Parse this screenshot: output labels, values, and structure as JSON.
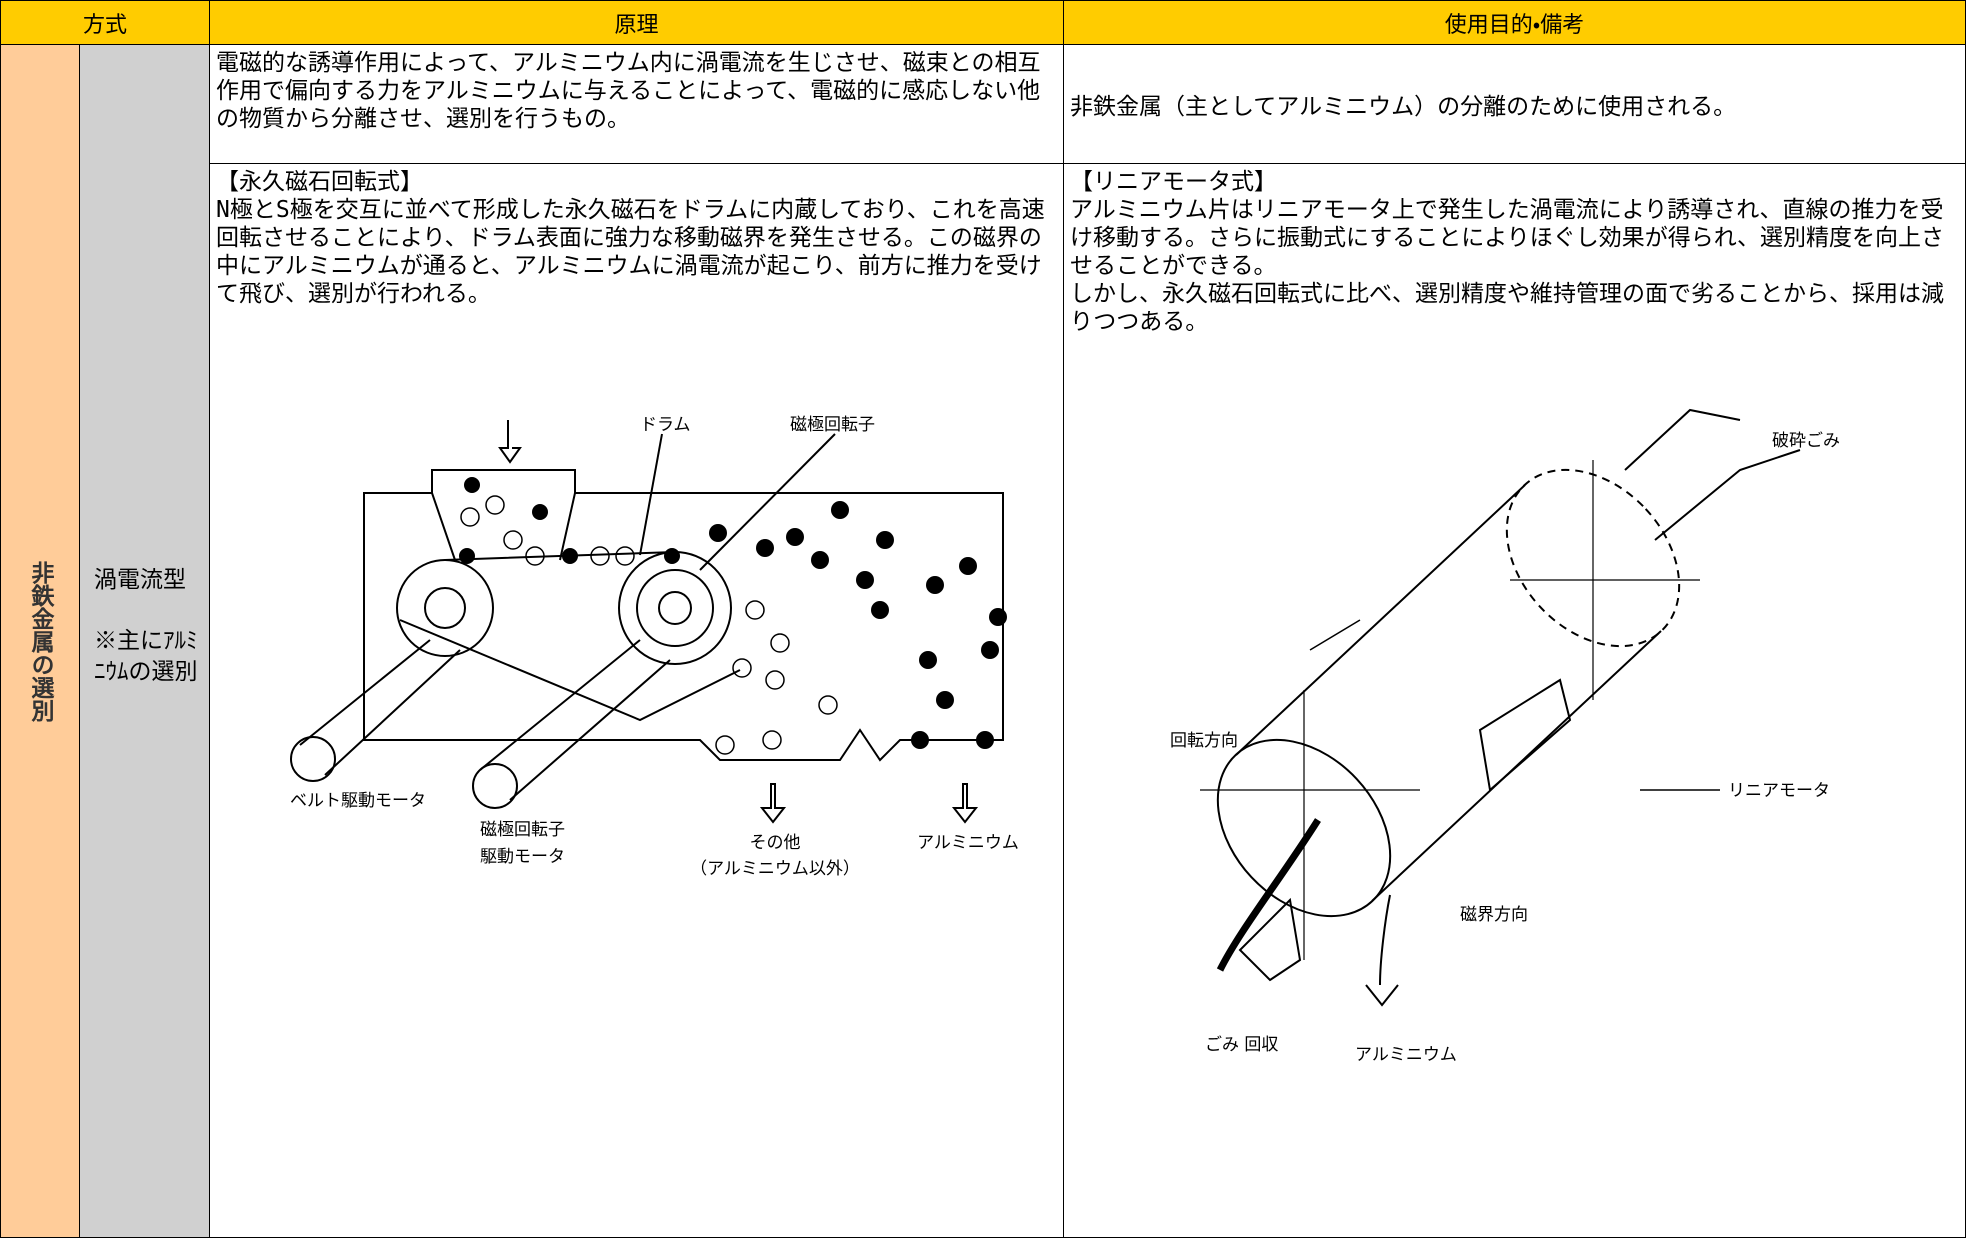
{
  "table": {
    "header": [
      "方式",
      "原理",
      "使用目的・備考"
    ],
    "category": "非鉄金属の選別",
    "type": "渦電流型",
    "type_note": "※主にｱﾙﾐﾆｳﾑの選別",
    "summary": {
      "principle": "電磁的な誘導作用によって、アルミニウム内に渦電流を生じさせ、磁束との相互作用で偏向する力をアルミニウムに与えることによって、電磁的に感応しない他の物質から分離させ、選別を行うもの。",
      "purpose": "非鉄金属（主としてアルミニウム）の分離のために使用される。"
    },
    "rotary": {
      "title": "【永久磁石回転式】",
      "text": "N極とS極を交互に並べて形成した永久磁石をドラムに内蔵しており、これを高速回転させることにより、ドラム表面に強力な移動磁界を発生させる。この磁界の中にアルミニウムが通ると、アルミニウムに渦電流が起こり、前方に推力を受けて飛び、選別が行われる。",
      "diagram": {
        "drum": "ドラム",
        "rotor": "磁極回転子",
        "belt_motor": "ベルト駆動モータ",
        "rotor_motor": [
          "磁極回転子",
          "駆動モータ"
        ],
        "other": [
          "その他",
          "（アルミニウム以外）"
        ],
        "aluminum": "アルミニウム"
      }
    },
    "linear": {
      "title": "【リニアモータ式】",
      "text": "アルミニウム片はリニアモータ上で発生した渦電流により誘導され、直線の推力を受け移動する。さらに振動式にすることによりほぐし効果が得られ、選別精度を向上させることができる。",
      "note": "しかし、永久磁石回転式に比べ、選別精度や維持管理の面で劣ることから、採用は減りつつある。",
      "diagram": {
        "crushed": "破砕ごみ",
        "rotation": "回転方向",
        "linear_motor": "リニアモータ",
        "field": "磁界方向",
        "waste": "ごみ 回収",
        "aluminum": "アルミニウム"
      }
    }
  }
}
